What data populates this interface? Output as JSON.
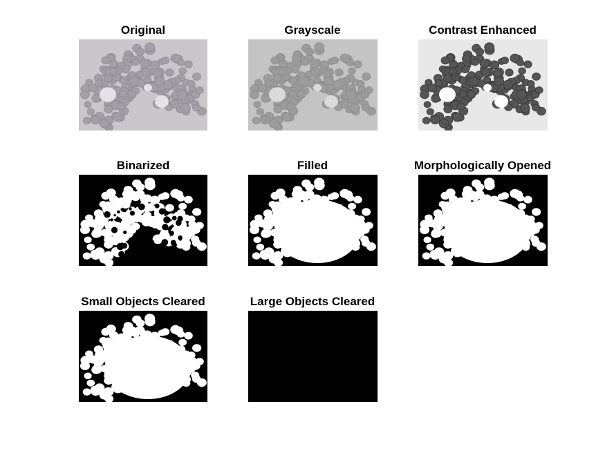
{
  "figure": {
    "panels": [
      {
        "id": "original",
        "title": "Original",
        "kind": "photo-color"
      },
      {
        "id": "grayscale",
        "title": "Grayscale",
        "kind": "photo-gray"
      },
      {
        "id": "contrast",
        "title": "Contrast Enhanced",
        "kind": "photo-contrast"
      },
      {
        "id": "binarized",
        "title": "Binarized",
        "kind": "mask-binarized"
      },
      {
        "id": "filled",
        "title": "Filled",
        "kind": "mask-filled"
      },
      {
        "id": "opened",
        "title": "Morphologically Opened",
        "kind": "mask-opened"
      },
      {
        "id": "small-cleared",
        "title": "Small Objects Cleared",
        "kind": "mask-small-cleared"
      },
      {
        "id": "large-cleared",
        "title": "Large Objects Cleared",
        "kind": "mask-empty"
      }
    ]
  }
}
